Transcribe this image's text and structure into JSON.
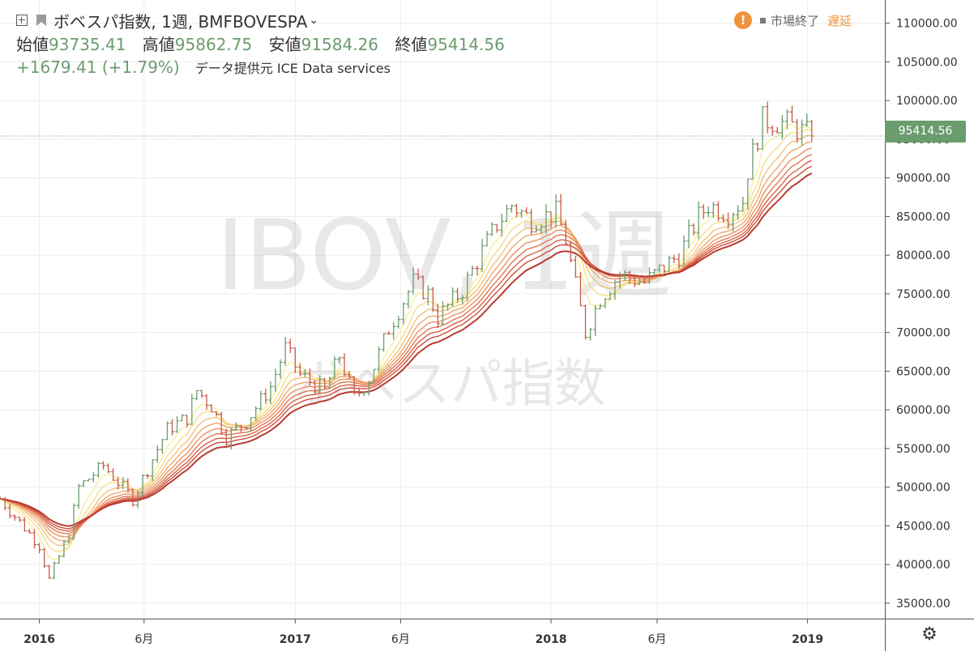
{
  "header": {
    "symbol_title": "ボベスパ指数, 1週, BMFBOVESPA",
    "ohlc": [
      {
        "label": "始値",
        "value": "93735.41"
      },
      {
        "label": "高値",
        "value": "95862.75"
      },
      {
        "label": "安値",
        "value": "91584.26"
      },
      {
        "label": "終値",
        "value": "95414.56"
      }
    ],
    "change": "+1679.41 (+1.79%)",
    "data_source": "データ提供元 ICE Data services"
  },
  "status": {
    "warning_glyph": "!",
    "market_closed": "市場終了",
    "delayed": "遅延"
  },
  "watermark": {
    "big": "IBOV, 1週",
    "small": "ボベスパ指数"
  },
  "price_tag": "95414.56",
  "colors": {
    "up": "#6a9c6d",
    "down": "#c85a4a",
    "accent": "#f1923b",
    "ribbon": [
      "#f8ef98",
      "#f6dc89",
      "#f3c27a",
      "#efa86c",
      "#ea905f",
      "#e27753",
      "#d86147",
      "#cd4d3d",
      "#b83c31"
    ]
  },
  "icons": {
    "settings": "⚙"
  },
  "chart_data": {
    "type": "ohlc",
    "title": "ボベスパ指数, 1週, BMFBOVESPA",
    "ylim": [
      33000,
      113000
    ],
    "y_ticks": [
      "35000.00",
      "40000.00",
      "45000.00",
      "50000.00",
      "55000.00",
      "60000.00",
      "65000.00",
      "70000.00",
      "75000.00",
      "80000.00",
      "85000.00",
      "90000.00",
      "95000.00",
      "100000.00",
      "105000.00",
      "110000.00"
    ],
    "x_ticks": [
      {
        "label": "2016",
        "date": "2016-01-04",
        "bold": true
      },
      {
        "label": "6月",
        "date": "2016-06-01",
        "bold": false
      },
      {
        "label": "2017",
        "date": "2017-01-02",
        "bold": true
      },
      {
        "label": "6月",
        "date": "2017-06-01",
        "bold": false
      },
      {
        "label": "2018",
        "date": "2018-01-01",
        "bold": true
      },
      {
        "label": "6月",
        "date": "2018-06-01",
        "bold": false
      },
      {
        "label": "2019",
        "date": "2019-01-01",
        "bold": true
      }
    ],
    "xlim": [
      "2015-11-09",
      "2019-04-21"
    ],
    "start_week": "2015-11-09",
    "last_close": 95414.56,
    "price_path": [
      [
        0,
        48500
      ],
      [
        8,
        42500
      ],
      [
        10,
        38000
      ],
      [
        14,
        44000
      ],
      [
        16,
        50000
      ],
      [
        21,
        52800
      ],
      [
        27,
        48500
      ],
      [
        34,
        57500
      ],
      [
        38,
        59000
      ],
      [
        40,
        62500
      ],
      [
        43,
        60500
      ],
      [
        46,
        56500
      ],
      [
        50,
        58500
      ],
      [
        55,
        63000
      ],
      [
        58,
        68000
      ],
      [
        61,
        64500
      ],
      [
        66,
        62500
      ],
      [
        69,
        67000
      ],
      [
        72,
        61500
      ],
      [
        75,
        64000
      ],
      [
        79,
        70500
      ],
      [
        84,
        76500
      ],
      [
        87,
        75000
      ],
      [
        89,
        72000
      ],
      [
        94,
        75500
      ],
      [
        98,
        80500
      ],
      [
        101,
        84000
      ],
      [
        104,
        86500
      ],
      [
        108,
        84500
      ],
      [
        113,
        85500
      ],
      [
        115,
        82000
      ],
      [
        117,
        76000
      ],
      [
        119,
        70000
      ],
      [
        122,
        74500
      ],
      [
        126,
        77500
      ],
      [
        131,
        76500
      ],
      [
        135,
        78500
      ],
      [
        138,
        80000
      ],
      [
        142,
        85000
      ],
      [
        144,
        86500
      ],
      [
        148,
        85500
      ],
      [
        151,
        87000
      ],
      [
        152,
        91000
      ],
      [
        155,
        97500
      ],
      [
        160,
        97000
      ],
      [
        163,
        96000
      ],
      [
        165,
        95414.56
      ]
    ],
    "ribbon_series": [
      "MA1",
      "MA2",
      "MA3",
      "MA4",
      "MA5",
      "MA6",
      "MA7",
      "MA8",
      "MA9"
    ]
  }
}
